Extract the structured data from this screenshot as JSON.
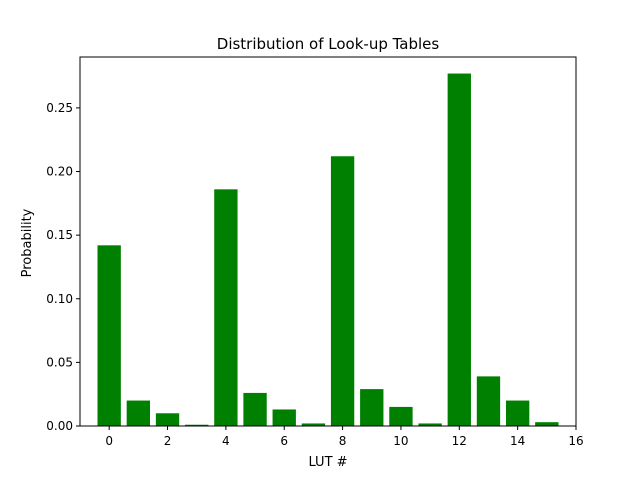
{
  "chart_data": {
    "type": "bar",
    "title": "Distribution of Look-up Tables",
    "xlabel": "LUT #",
    "ylabel": "Probability",
    "x": [
      0,
      1,
      2,
      3,
      4,
      5,
      6,
      7,
      8,
      9,
      10,
      11,
      12,
      13,
      14,
      15
    ],
    "values": [
      0.142,
      0.02,
      0.01,
      0.001,
      0.186,
      0.026,
      0.013,
      0.002,
      0.212,
      0.029,
      0.015,
      0.002,
      0.277,
      0.039,
      0.02,
      0.003
    ],
    "xlim": [
      -1,
      16
    ],
    "ylim": [
      0,
      0.29
    ],
    "xticks": [
      0,
      2,
      4,
      6,
      8,
      10,
      12,
      14,
      16
    ],
    "xtick_labels": [
      "0",
      "2",
      "4",
      "6",
      "8",
      "10",
      "12",
      "14",
      "16"
    ],
    "yticks": [
      0,
      0.05,
      0.1,
      0.15,
      0.2,
      0.25
    ],
    "ytick_labels": [
      "0.00",
      "0.05",
      "0.10",
      "0.15",
      "0.20",
      "0.25"
    ],
    "bar_color": "#008000",
    "grid": false,
    "legend": null
  }
}
